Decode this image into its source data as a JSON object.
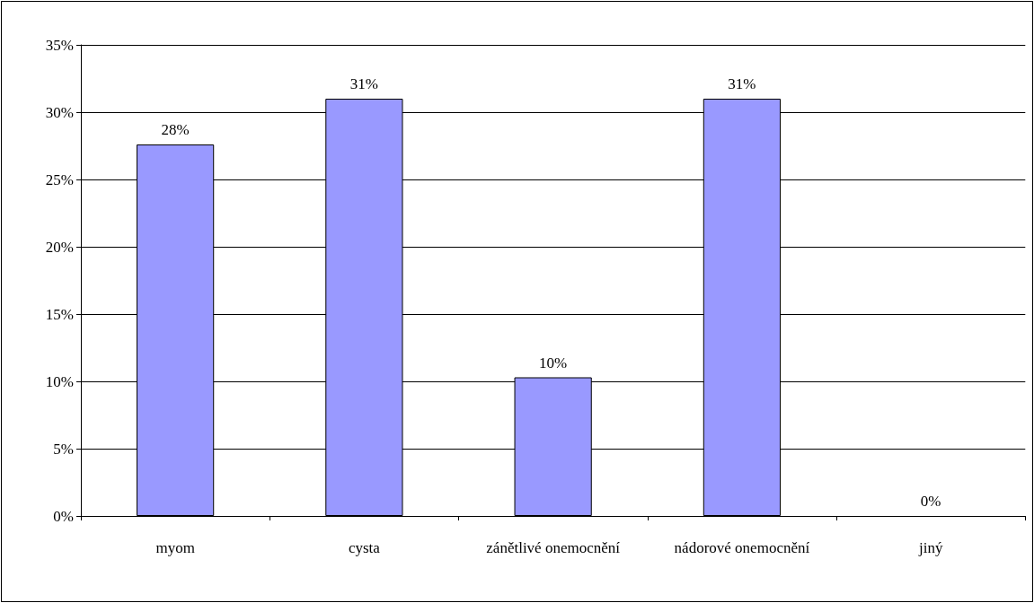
{
  "chart_data": {
    "type": "bar",
    "categories": [
      "myom",
      "cysta",
      "zánětlivé onemocnění",
      "nádorové onemocnění",
      "jiný"
    ],
    "series": [
      {
        "color": "#9999ff",
        "values": [
          27.6,
          31,
          10.3,
          31,
          0
        ],
        "value_labels": [
          "28%",
          "31%",
          "10%",
          "31%",
          "0%"
        ]
      }
    ],
    "ylim": [
      0,
      35
    ],
    "yticks": [
      {
        "value": 0,
        "label": "0%"
      },
      {
        "value": 5,
        "label": "5%"
      },
      {
        "value": 10,
        "label": "10%"
      },
      {
        "value": 15,
        "label": "15%"
      },
      {
        "value": 20,
        "label": "20%"
      },
      {
        "value": 25,
        "label": "25%"
      },
      {
        "value": 30,
        "label": "30%"
      },
      {
        "value": 35,
        "label": "35%"
      }
    ],
    "grid": "y"
  }
}
